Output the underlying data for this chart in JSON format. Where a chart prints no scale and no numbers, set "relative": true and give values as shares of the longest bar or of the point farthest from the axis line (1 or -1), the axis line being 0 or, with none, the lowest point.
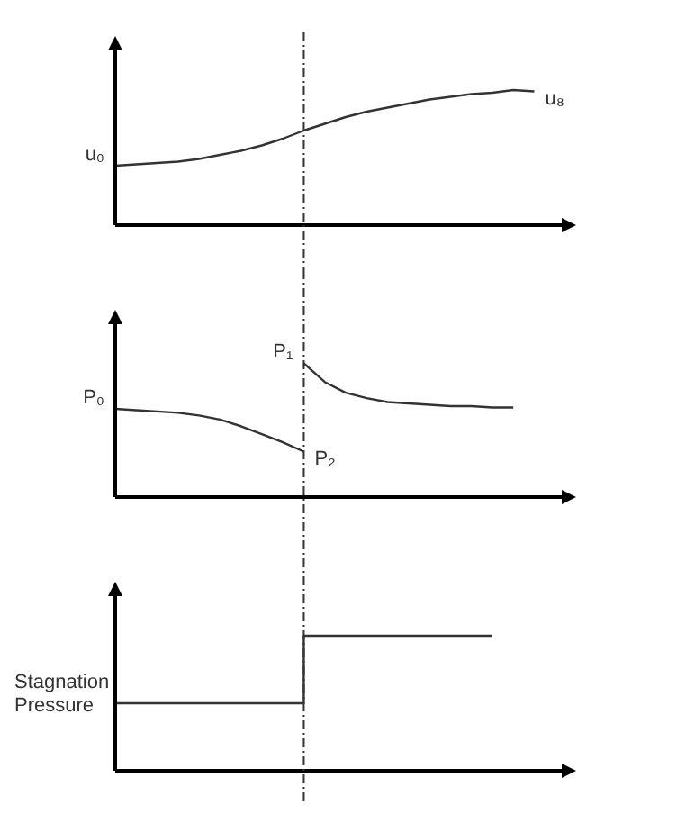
{
  "chart_data": [
    {
      "type": "line",
      "relative": true,
      "tick_labels": false,
      "categories": [
        null,
        null,
        null,
        null,
        null,
        null,
        null,
        null,
        null,
        null,
        null,
        null,
        null,
        null,
        null,
        null,
        null,
        null,
        null,
        null,
        null,
        null,
        null
      ],
      "series": [
        {
          "color": "#333333",
          "values": [
            0.44,
            0.45,
            0.46,
            0.47,
            0.49,
            0.52,
            0.55,
            0.59,
            0.64,
            0.7,
            0.75,
            0.8,
            0.84,
            0.87,
            0.9,
            0.93,
            0.95,
            0.97,
            0.98,
            1,
            0.99,
            null,
            null
          ]
        }
      ],
      "annotations": [
        "u₀",
        "u₈"
      ]
    },
    {
      "type": "line",
      "relative": true,
      "tick_labels": false,
      "categories": [
        null,
        null,
        null,
        null,
        null,
        null,
        null,
        null,
        null,
        null,
        null,
        null,
        null,
        null,
        null,
        null,
        null,
        null,
        null,
        null,
        null,
        null,
        null
      ],
      "series": [
        {
          "color": "#333333",
          "values": [
            0.66,
            0.65,
            0.64,
            0.63,
            0.61,
            0.58,
            0.53,
            0.47,
            0.41,
            0.34,
            null,
            null,
            null,
            null,
            null,
            null,
            null,
            null,
            null,
            null,
            null,
            null,
            null
          ]
        },
        {
          "color": "#333333",
          "values": [
            null,
            null,
            null,
            null,
            null,
            null,
            null,
            null,
            null,
            1,
            0.86,
            0.78,
            0.74,
            0.71,
            0.7,
            0.69,
            0.68,
            0.68,
            0.67,
            0.67,
            null,
            null,
            null
          ]
        }
      ],
      "annotations": [
        "P₀",
        "P₂",
        "P₁"
      ]
    },
    {
      "type": "step",
      "relative": true,
      "tick_labels": false,
      "ylabel": "Stagnation Pressure",
      "categories": [
        null,
        null,
        null,
        null,
        null,
        null,
        null,
        null,
        null,
        null,
        null,
        null,
        null,
        null,
        null,
        null,
        null,
        null,
        null,
        null,
        null,
        null,
        null
      ],
      "series": [
        {
          "color": "#333333",
          "values": [
            0.5,
            0.5,
            0.5,
            0.5,
            0.5,
            0.5,
            0.5,
            0.5,
            0.5,
            1,
            1,
            1,
            1,
            1,
            1,
            1,
            1,
            1,
            1,
            null,
            null,
            null,
            null
          ]
        }
      ]
    }
  ]
}
